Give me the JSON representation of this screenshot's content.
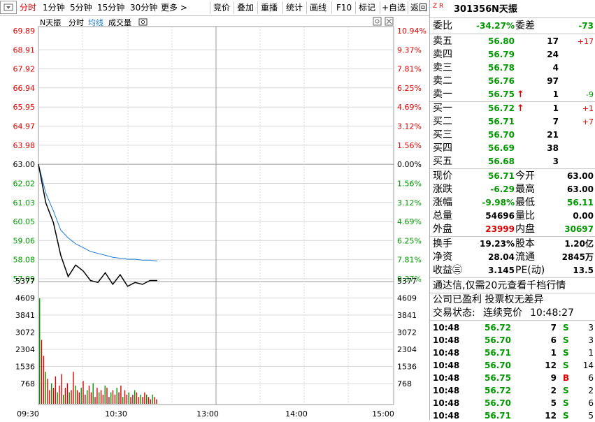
{
  "toolbar": {
    "left_tabs": [
      "分时",
      "1分钟",
      "5分钟",
      "15分钟",
      "30分钟",
      "更多 >"
    ],
    "right_buttons": [
      "竞价",
      "叠加",
      "重播",
      "统计",
      "画线",
      "F10",
      "标记",
      "+自选",
      "返回"
    ]
  },
  "chart": {
    "legend": {
      "name": "N天振",
      "fenshi": "分时",
      "junxian": "均线",
      "volume": "成交量"
    },
    "price_ticks": [
      "69.89",
      "68.91",
      "67.92",
      "66.94",
      "65.95",
      "64.97",
      "63.98",
      "63.00",
      "62.02",
      "61.03",
      "60.05",
      "59.06",
      "58.08",
      "57.09"
    ],
    "pct_ticks": [
      "10.94%",
      "9.37%",
      "7.81%",
      "6.25%",
      "4.69%",
      "3.12%",
      "1.56%",
      "0.00%",
      "1.56%",
      "3.12%",
      "4.69%",
      "6.25%",
      "7.81%",
      "9.37%"
    ],
    "volume_ticks": [
      "5377",
      "4609",
      "3841",
      "3072",
      "2304",
      "1536",
      "768"
    ],
    "time_ticks": [
      "09:30",
      "10:30",
      "13:00",
      "14:00",
      "15:00"
    ],
    "colors": {
      "up": "#e00000",
      "down": "#009900",
      "avg_line": "#1c7cd6",
      "price_line": "#000000",
      "grid": "#d0d0d0"
    }
  },
  "chart_data": {
    "type": "line",
    "title": "",
    "prev_close": 63.0,
    "ylim": [
      57.09,
      69.89
    ],
    "x": [
      "09:30",
      "09:35",
      "09:40",
      "09:45",
      "09:50",
      "09:55",
      "10:00",
      "10:05",
      "10:10",
      "10:15",
      "10:20",
      "10:25",
      "10:30",
      "10:35",
      "10:40",
      "10:45",
      "10:50"
    ],
    "series": [
      {
        "values": [
          63.0,
          61.0,
          60.0,
          58.3,
          57.2,
          57.8,
          57.5,
          57.0,
          56.9,
          57.4,
          56.8,
          57.3,
          56.7,
          56.9,
          56.8,
          57.0,
          57.0
        ]
      },
      {
        "values": [
          63.0,
          61.5,
          60.6,
          59.6,
          59.2,
          58.9,
          58.7,
          58.5,
          58.4,
          58.3,
          58.2,
          58.15,
          58.1,
          58.1,
          58.05,
          58.05,
          58.0
        ]
      }
    ],
    "volume": {
      "ylim": [
        0,
        5377
      ],
      "values": [
        4609,
        2800,
        2100,
        1400,
        1100,
        600,
        900,
        700,
        1200,
        500,
        800,
        1300,
        400,
        700,
        900,
        500,
        600,
        1400,
        800,
        600,
        500,
        700,
        1000,
        400,
        600,
        800,
        500,
        900,
        300,
        700,
        500,
        600,
        400,
        800,
        700,
        300,
        500,
        600,
        400,
        700,
        500,
        800,
        300,
        600,
        400,
        500,
        300,
        400,
        600,
        500,
        300,
        400,
        300,
        500,
        400,
        300,
        200,
        400,
        300,
        200
      ]
    }
  },
  "panel": {
    "stock_code": "301356",
    "stock_name": "N天振",
    "zr": "Z R",
    "weibi_label": "委比",
    "weibi": "-34.27%",
    "weicha_label": "委差",
    "weicha": "-73",
    "asks": [
      {
        "label": "卖五",
        "price": "56.80",
        "vol": "17",
        "chg": "+17"
      },
      {
        "label": "卖四",
        "price": "56.79",
        "vol": "24",
        "chg": ""
      },
      {
        "label": "卖三",
        "price": "56.78",
        "vol": "4",
        "chg": ""
      },
      {
        "label": "卖二",
        "price": "56.76",
        "vol": "97",
        "chg": ""
      },
      {
        "label": "卖一",
        "price": "56.75",
        "vol": "1",
        "chg": "-9"
      }
    ],
    "bids": [
      {
        "label": "买一",
        "price": "56.72",
        "vol": "1",
        "chg": "+1"
      },
      {
        "label": "买二",
        "price": "56.71",
        "vol": "7",
        "chg": "+7"
      },
      {
        "label": "买三",
        "price": "56.70",
        "vol": "21",
        "chg": ""
      },
      {
        "label": "买四",
        "price": "56.69",
        "vol": "38",
        "chg": ""
      },
      {
        "label": "买五",
        "price": "56.68",
        "vol": "3",
        "chg": ""
      }
    ],
    "stats": [
      {
        "l1": "现价",
        "v1": "56.71",
        "c1": "green",
        "l2": "今开",
        "v2": "63.00",
        "c2": "blk"
      },
      {
        "l1": "涨跌",
        "v1": "-6.29",
        "c1": "green",
        "l2": "最高",
        "v2": "63.00",
        "c2": "blk"
      },
      {
        "l1": "涨幅",
        "v1": "-9.98%",
        "c1": "green",
        "l2": "最低",
        "v2": "56.11",
        "c2": "green"
      },
      {
        "l1": "总量",
        "v1": "54696",
        "c1": "blk",
        "l2": "量比",
        "v2": "0.00",
        "c2": "blk"
      },
      {
        "l1": "外盘",
        "v1": "23999",
        "c1": "red",
        "l2": "内盘",
        "v2": "30697",
        "c2": "green"
      }
    ],
    "stats2": [
      {
        "l1": "换手",
        "v1": "19.23%",
        "l2": "股本",
        "v2": "1.20亿"
      },
      {
        "l1": "净资",
        "v1": "28.04",
        "l2": "流通",
        "v2": "2845万"
      },
      {
        "l1": "收益㊂",
        "v1": "3.145",
        "l2": "PE(动)",
        "v2": "13.5"
      }
    ],
    "promo": "通达信,仅需20元查看千档行情",
    "notice": "公司已盈利 投票权无差异",
    "trade_status_label": "交易状态:",
    "trade_status": "连续竞价",
    "trade_time": "10:48:27",
    "ticks": [
      {
        "t": "10:48",
        "p": "56.72",
        "v": "7",
        "d": "S",
        "n": "3"
      },
      {
        "t": "10:48",
        "p": "56.70",
        "v": "6",
        "d": "S",
        "n": "3"
      },
      {
        "t": "10:48",
        "p": "56.71",
        "v": "1",
        "d": "S",
        "n": "1"
      },
      {
        "t": "10:48",
        "p": "56.70",
        "v": "12",
        "d": "S",
        "n": "14"
      },
      {
        "t": "10:48",
        "p": "56.75",
        "v": "9",
        "d": "B",
        "n": "6"
      },
      {
        "t": "10:48",
        "p": "56.72",
        "v": "2",
        "d": "S",
        "n": "2"
      },
      {
        "t": "10:48",
        "p": "56.70",
        "v": "5",
        "d": "S",
        "n": "6"
      },
      {
        "t": "10:48",
        "p": "56.71",
        "v": "12",
        "d": "S",
        "n": "5"
      }
    ]
  }
}
